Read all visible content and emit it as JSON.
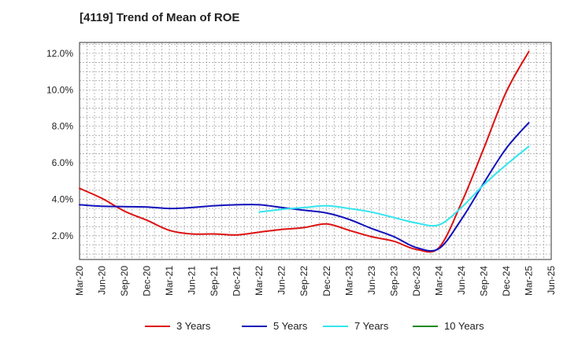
{
  "chart_data": {
    "type": "line",
    "title": "[4119]  Trend of Mean of ROE",
    "xlabel": "",
    "ylabel": "",
    "y_unit": "%",
    "ylim": [
      0.7,
      12.6
    ],
    "yticks": [
      2.0,
      4.0,
      6.0,
      8.0,
      10.0,
      12.0
    ],
    "ytick_labels": [
      "2.0%",
      "4.0%",
      "6.0%",
      "8.0%",
      "10.0%",
      "12.0%"
    ],
    "xticks": [
      "Mar-20",
      "Jun-20",
      "Sep-20",
      "Dec-20",
      "Mar-21",
      "Jun-21",
      "Sep-21",
      "Dec-21",
      "Mar-22",
      "Jun-22",
      "Sep-22",
      "Dec-22",
      "Mar-23",
      "Jun-23",
      "Sep-23",
      "Dec-23",
      "Mar-24",
      "Jun-24",
      "Sep-24",
      "Dec-24",
      "Mar-25",
      "Jun-25"
    ],
    "grid": true,
    "legend_position": "bottom",
    "series": [
      {
        "name": "3 Years",
        "color": "#dd1111",
        "x": [
          "Mar-20",
          "Jun-20",
          "Sep-20",
          "Dec-20",
          "Mar-21",
          "Jun-21",
          "Sep-21",
          "Dec-21",
          "Mar-22",
          "Jun-22",
          "Sep-22",
          "Dec-22",
          "Mar-23",
          "Jun-23",
          "Sep-23",
          "Dec-23",
          "Mar-24",
          "Jun-24",
          "Sep-24",
          "Dec-24",
          "Mar-25"
        ],
        "values": [
          4.6,
          4.05,
          3.35,
          2.85,
          2.3,
          2.1,
          2.1,
          2.05,
          2.2,
          2.35,
          2.45,
          2.65,
          2.3,
          1.95,
          1.7,
          1.25,
          1.35,
          3.8,
          6.8,
          9.9,
          12.1
        ]
      },
      {
        "name": "5 Years",
        "color": "#1111bb",
        "x": [
          "Mar-20",
          "Jun-20",
          "Sep-20",
          "Dec-20",
          "Mar-21",
          "Jun-21",
          "Sep-21",
          "Dec-21",
          "Mar-22",
          "Jun-22",
          "Sep-22",
          "Dec-22",
          "Mar-23",
          "Jun-23",
          "Sep-23",
          "Dec-23",
          "Mar-24",
          "Jun-24",
          "Sep-24",
          "Dec-24",
          "Mar-25"
        ],
        "values": [
          3.7,
          3.62,
          3.6,
          3.58,
          3.5,
          3.55,
          3.65,
          3.7,
          3.7,
          3.55,
          3.4,
          3.25,
          2.9,
          2.4,
          1.95,
          1.35,
          1.3,
          2.9,
          4.9,
          6.8,
          8.2
        ]
      },
      {
        "name": "7 Years",
        "color": "#33e5ee",
        "x": [
          "Mar-22",
          "Jun-22",
          "Sep-22",
          "Dec-22",
          "Mar-23",
          "Jun-23",
          "Sep-23",
          "Dec-23",
          "Mar-24",
          "Jun-24",
          "Sep-24",
          "Dec-24",
          "Mar-25"
        ],
        "values": [
          3.3,
          3.45,
          3.55,
          3.65,
          3.5,
          3.3,
          3.0,
          2.7,
          2.6,
          3.55,
          4.8,
          5.9,
          6.9
        ]
      },
      {
        "name": "10 Years",
        "color": "#228822",
        "x": [],
        "values": []
      }
    ]
  }
}
